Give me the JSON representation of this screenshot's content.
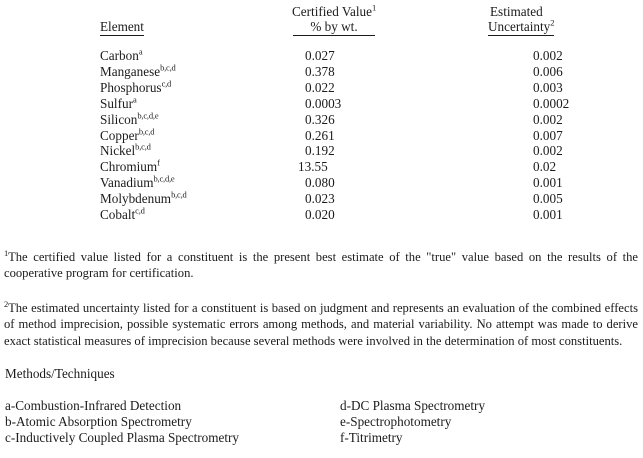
{
  "table": {
    "header": {
      "element_label": "Element",
      "certified_value_label": "Certified Value",
      "certified_value_sup": "1",
      "unit_label": "% by wt.",
      "estimated_label": "Estimated",
      "uncertainty_label": "Uncertainty",
      "uncertainty_sup": "2"
    },
    "rows": [
      {
        "element": "Carbon",
        "sup": "a",
        "certified_value": "0.027",
        "uncertainty": "0.002"
      },
      {
        "element": "Manganese",
        "sup": "b,c,d",
        "certified_value": "0.378",
        "uncertainty": "0.006"
      },
      {
        "element": "Phosphorus",
        "sup": "c,d",
        "certified_value": "0.022",
        "uncertainty": "0.003"
      },
      {
        "element": "Sulfur",
        "sup": "a",
        "certified_value": "0.0003",
        "uncertainty": "0.0002"
      },
      {
        "element": "Silicon",
        "sup": "b,c,d,e",
        "certified_value": "0.326",
        "uncertainty": "0.002"
      },
      {
        "element": "Copper",
        "sup": "b,c,d",
        "certified_value": "0.261",
        "uncertainty": "0.007"
      },
      {
        "element": "Nickel",
        "sup": "b,c,d",
        "certified_value": "0.192",
        "uncertainty": "0.002"
      },
      {
        "element": "Chromium",
        "sup": "f",
        "certified_value": "13.55",
        "uncertainty": "0.02"
      },
      {
        "element": "Vanadium",
        "sup": "b,c,d,e",
        "certified_value": "0.080",
        "uncertainty": "0.001"
      },
      {
        "element": "Molybdenum",
        "sup": "b,c,d",
        "certified_value": "0.023",
        "uncertainty": "0.005"
      },
      {
        "element": "Cobalt",
        "sup": "c,d",
        "certified_value": "0.020",
        "uncertainty": "0.001"
      }
    ]
  },
  "footnotes": [
    {
      "sup": "1",
      "text": "The certified value listed for a constituent is the present best estimate of the \"true\" value based on the results of the cooperative program for certification."
    },
    {
      "sup": "2",
      "text": "The estimated uncertainty listed for a constituent is based on judgment and represents an evaluation of the combined effects of method imprecision, possible systematic errors among methods, and material variability. No attempt was made to derive exact statistical measures of imprecision because several methods were involved in the determination of most constituents."
    }
  ],
  "methods": {
    "heading": "Methods/Techniques",
    "left_column": [
      "a-Combustion-Infrared Detection",
      "b-Atomic Absorption Spectrometry",
      "c-Inductively Coupled Plasma Spectrometry"
    ],
    "right_column": [
      "d-DC Plasma Spectrometry",
      "e-Spectrophotometry",
      "f-Titrimetry"
    ]
  }
}
